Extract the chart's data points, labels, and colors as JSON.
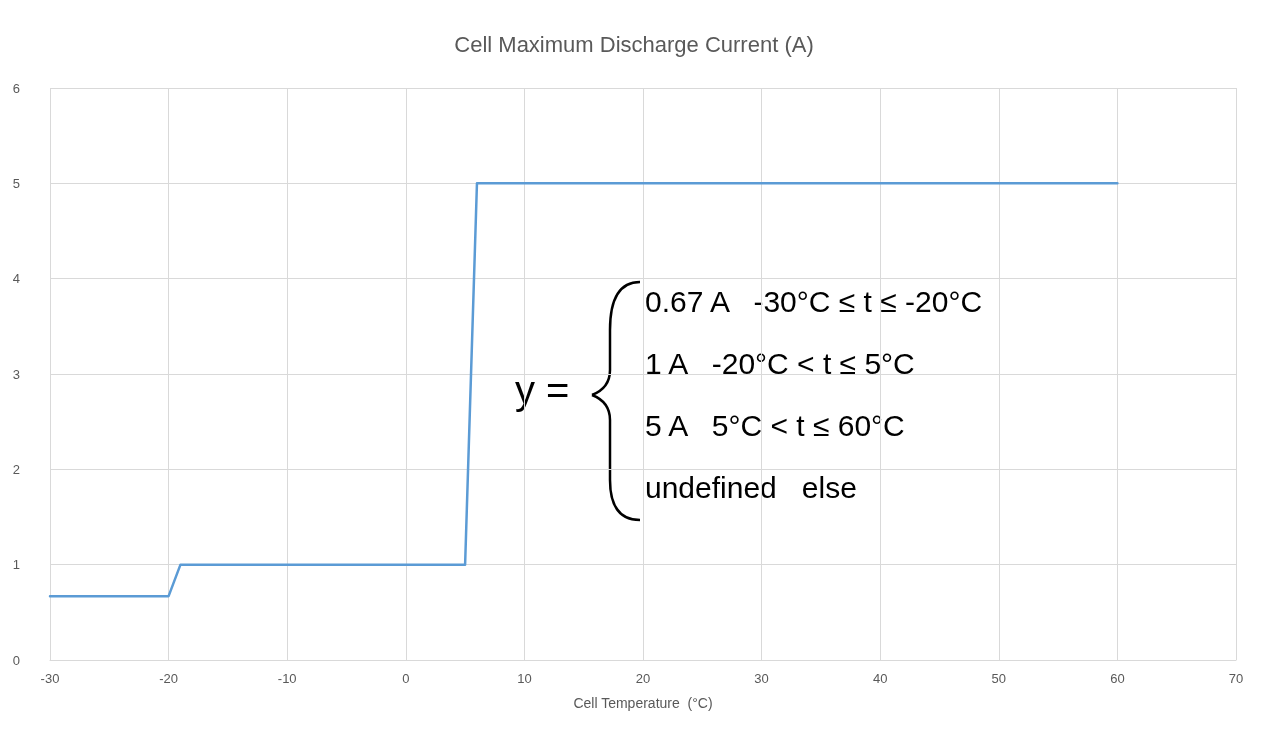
{
  "chart_data": {
    "type": "line",
    "title": "Cell Maximum Discharge Current (A)",
    "xlabel": "Cell Temperature  (°C)",
    "x": [
      -30,
      -20,
      -19,
      5,
      6,
      60
    ],
    "series": [
      {
        "color": "#5b9bd5",
        "values": [
          0.67,
          0.67,
          1,
          1,
          5,
          5
        ]
      }
    ],
    "xlim": [
      -30,
      70
    ],
    "xticks": [
      -30,
      -20,
      -10,
      0,
      10,
      20,
      30,
      40,
      50,
      60,
      70
    ],
    "ylim": [
      0,
      6
    ],
    "yticks": [
      0,
      1,
      2,
      3,
      4,
      5,
      6
    ],
    "grid": true,
    "marker": "none",
    "line_style": "solid",
    "annotations": [
      "y =",
      "0.67 A   -30°C ≤ t ≤ -20°C",
      "1 A   -20°C < t ≤ 5°C",
      "5 A   5°C < t ≤ 60°C",
      "undefined   else"
    ]
  }
}
